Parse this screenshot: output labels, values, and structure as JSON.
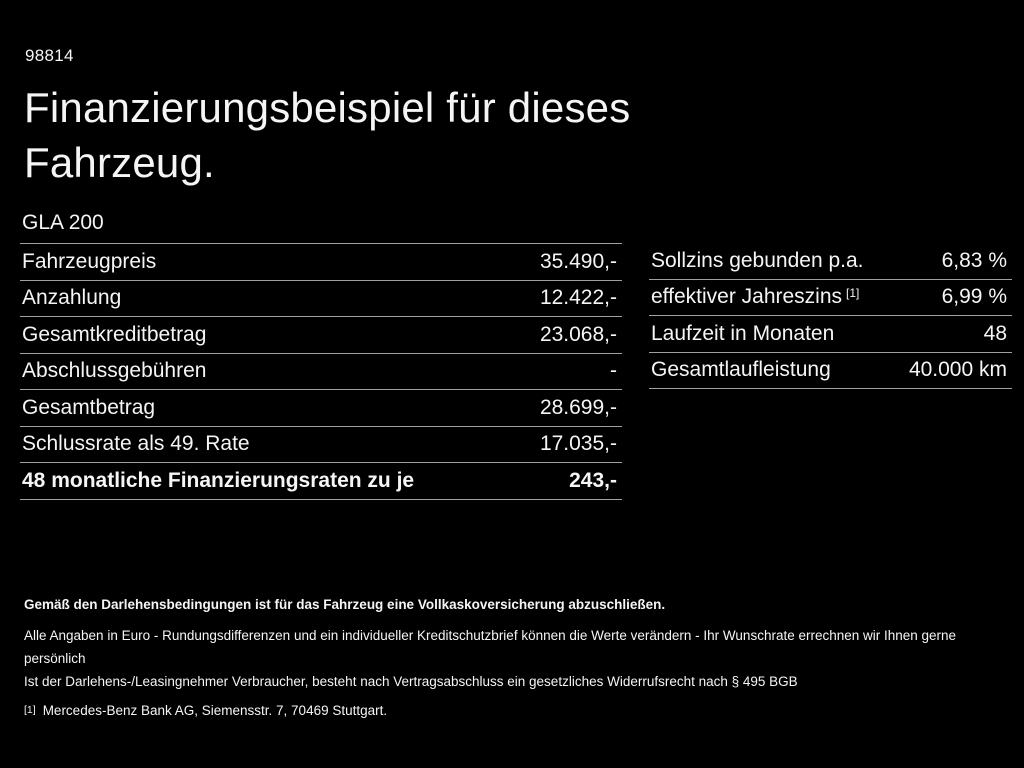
{
  "page": {
    "doc_number": "98814",
    "title_line1": "Finanzierungsbeispiel für dieses",
    "title_line2": "Fahrzeug.",
    "model": "GLA 200"
  },
  "finance_table": {
    "rows": [
      {
        "label": "Fahrzeugpreis",
        "value": "35.490,-"
      },
      {
        "label": "Anzahlung",
        "value": "12.422,-"
      },
      {
        "label": "Gesamtkreditbetrag",
        "value": "23.068,-"
      },
      {
        "label": "Abschlussgebühren",
        "value": "-"
      },
      {
        "label": "Gesamtbetrag",
        "value": "28.699,-"
      },
      {
        "label": "Schlussrate als 49. Rate",
        "value": "17.035,-"
      },
      {
        "label": "48 monatliche Finanzierungsraten zu je",
        "value": "243,-"
      }
    ]
  },
  "conditions_table": {
    "rows": [
      {
        "label": "Sollzins gebunden p.a.",
        "value": "6,83 %"
      },
      {
        "label": "effektiver Jahreszins",
        "footnote_marker": "[1]",
        "value": "6,99 %"
      },
      {
        "label": "Laufzeit in Monaten",
        "value": "48"
      },
      {
        "label": "Gesamtlaufleistung",
        "value": "40.000 km"
      }
    ]
  },
  "footer": {
    "bold_note": "Gemäß den Darlehensbedingungen ist für das Fahrzeug eine Vollkaskoversicherung abzuschließen.",
    "note1": "Alle Angaben in Euro - Rundungsdifferenzen und ein individueller Kreditschutzbrief können die Werte verändern - Ihr Wunschrate errechnen wir Ihnen gerne persönlich",
    "note2": "Ist der Darlehens-/Leasingnehmer Verbraucher, besteht nach Vertragsabschluss ein gesetzliches Widerrufsrecht nach § 495 BGB",
    "footnote_marker": "[1]",
    "footnote_text": "Mercedes-Benz Bank AG, Siemensstr. 7, 70469 Stuttgart."
  },
  "colors": {
    "background": "#000000",
    "text": "#f5f5f5",
    "divider": "#a0a0a0"
  }
}
